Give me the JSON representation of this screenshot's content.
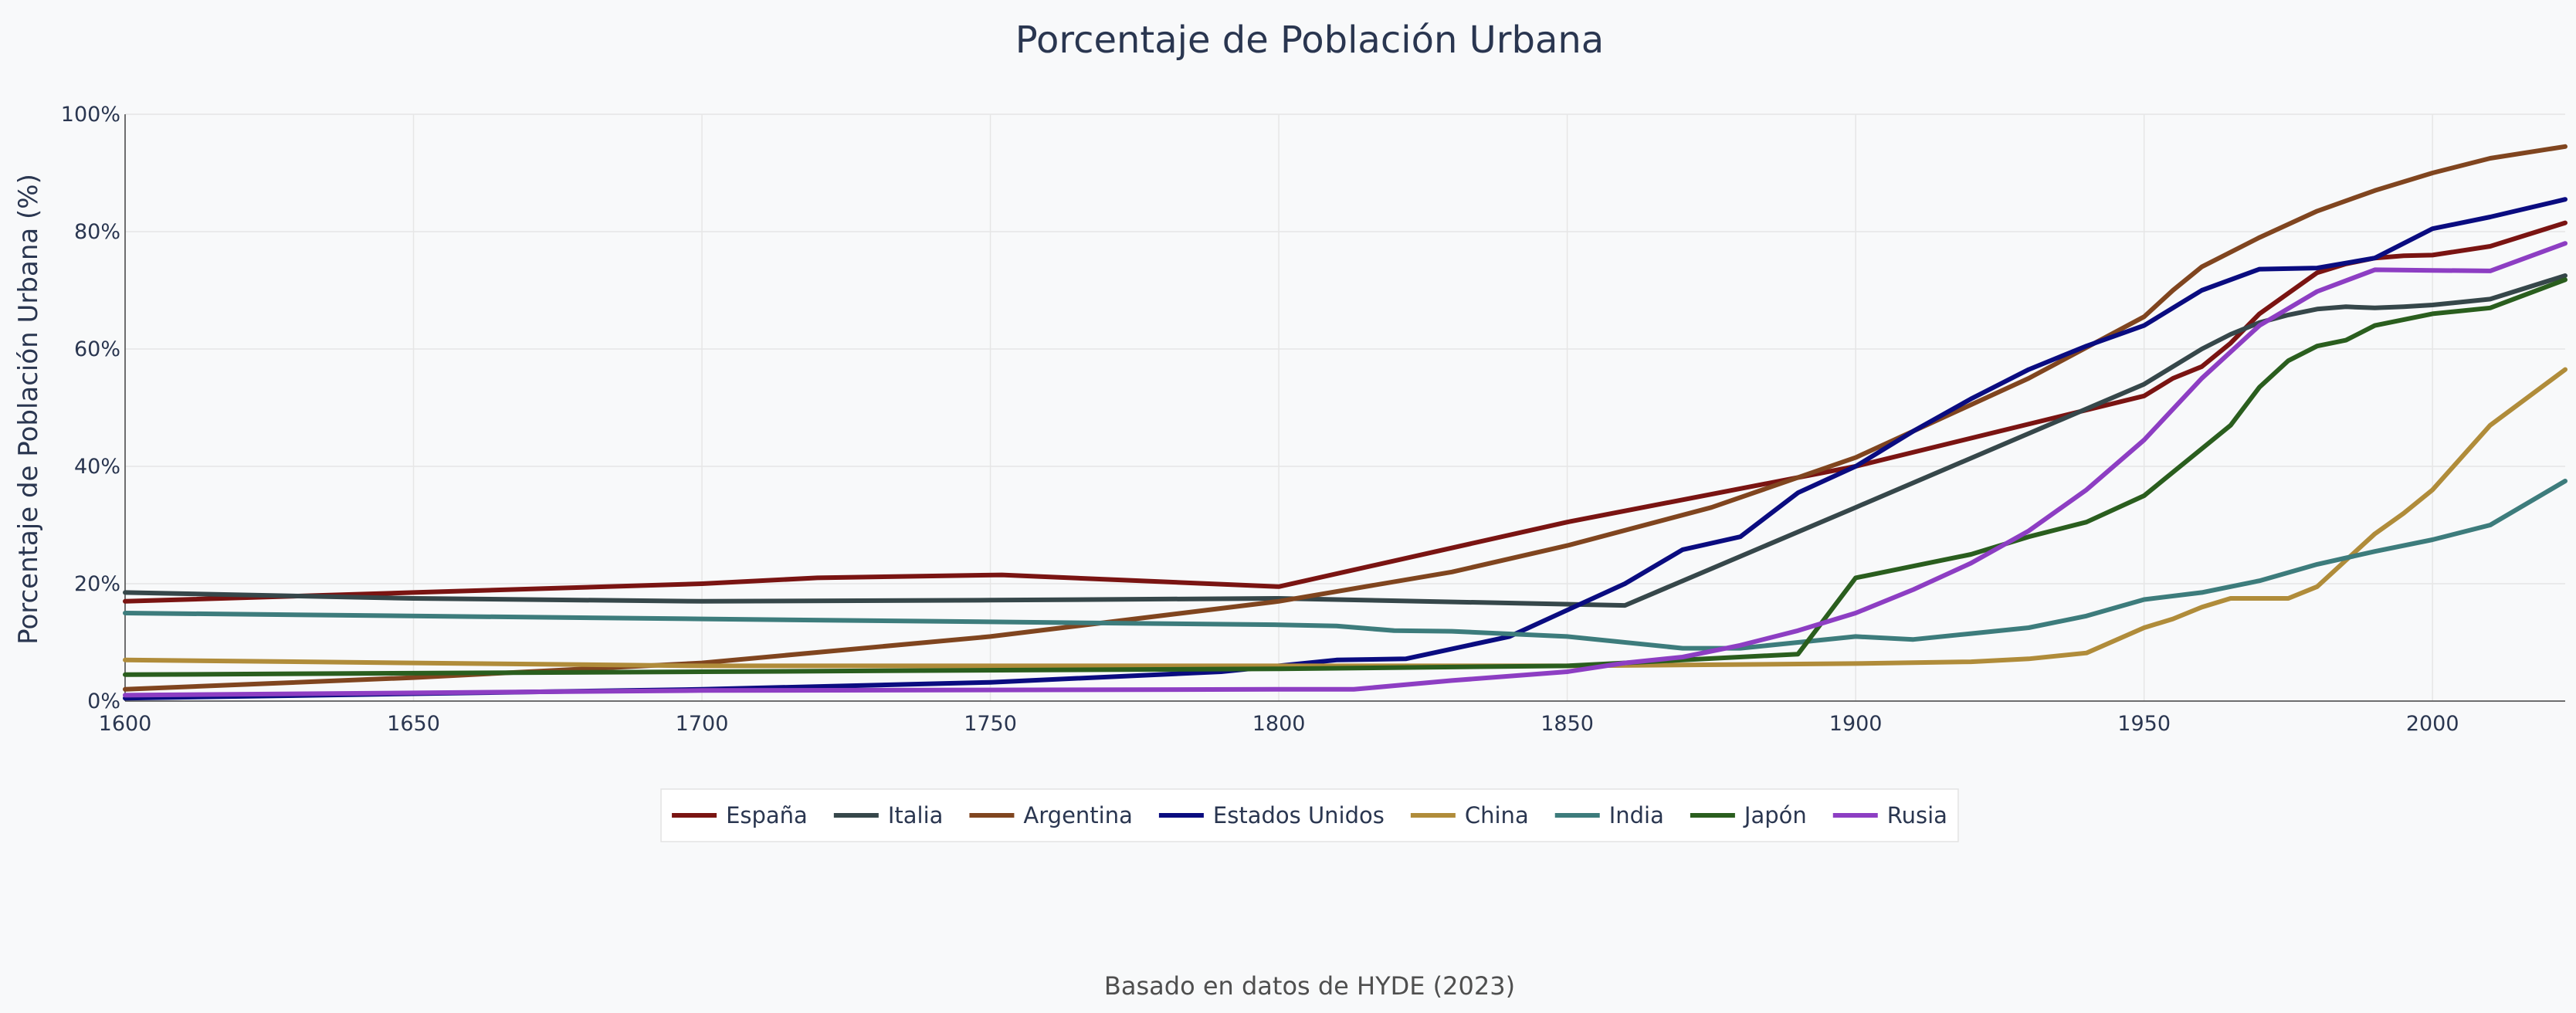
{
  "chart_data": {
    "type": "line",
    "title": "Porcentaje de Población Urbana",
    "xlabel": "",
    "ylabel": "Porcentaje de Población Urbana (%)",
    "xlim": [
      1600,
      2023
    ],
    "ylim": [
      0,
      100
    ],
    "x_ticks": [
      "1600",
      "1650",
      "1700",
      "1750",
      "1800",
      "1850",
      "1900",
      "1950",
      "2000"
    ],
    "y_ticks": [
      "0%",
      "20%",
      "40%",
      "60%",
      "80%",
      "100%"
    ],
    "grid": true,
    "legend_position": "bottom-center",
    "footnote": "Basado en datos de HYDE (2023)",
    "series": [
      {
        "name": "España",
        "color": "#7a1412",
        "points": [
          [
            1600,
            17
          ],
          [
            1650,
            18.5
          ],
          [
            1700,
            20
          ],
          [
            1720,
            21
          ],
          [
            1752,
            21.5
          ],
          [
            1800,
            19.5
          ],
          [
            1850,
            30.5
          ],
          [
            1900,
            40
          ],
          [
            1950,
            52
          ],
          [
            1955,
            55
          ],
          [
            1960,
            57
          ],
          [
            1965,
            61
          ],
          [
            1970,
            66
          ],
          [
            1975,
            69.5
          ],
          [
            1980,
            73
          ],
          [
            1985,
            74.5
          ],
          [
            1990,
            75.5
          ],
          [
            1995,
            75.9
          ],
          [
            2000,
            76
          ],
          [
            2010,
            77.5
          ],
          [
            2023,
            81.5
          ]
        ]
      },
      {
        "name": "Italia",
        "color": "#36474a",
        "points": [
          [
            1600,
            18.5
          ],
          [
            1650,
            17.5
          ],
          [
            1700,
            17
          ],
          [
            1750,
            17.2
          ],
          [
            1800,
            17.5
          ],
          [
            1860,
            16.3
          ],
          [
            1900,
            33
          ],
          [
            1950,
            54
          ],
          [
            1955,
            57
          ],
          [
            1960,
            60
          ],
          [
            1965,
            62.5
          ],
          [
            1970,
            64.5
          ],
          [
            1975,
            65.8
          ],
          [
            1980,
            66.8
          ],
          [
            1985,
            67.2
          ],
          [
            1990,
            67
          ],
          [
            1995,
            67.2
          ],
          [
            2000,
            67.5
          ],
          [
            2010,
            68.5
          ],
          [
            2023,
            72.5
          ]
        ]
      },
      {
        "name": "Argentina",
        "color": "#80451f",
        "points": [
          [
            1600,
            2
          ],
          [
            1650,
            4
          ],
          [
            1700,
            6.5
          ],
          [
            1750,
            11
          ],
          [
            1800,
            17
          ],
          [
            1830,
            22
          ],
          [
            1850,
            26.5
          ],
          [
            1875,
            33
          ],
          [
            1900,
            41.5
          ],
          [
            1930,
            55
          ],
          [
            1950,
            65.5
          ],
          [
            1955,
            70
          ],
          [
            1960,
            74
          ],
          [
            1970,
            79
          ],
          [
            1980,
            83.5
          ],
          [
            1990,
            87
          ],
          [
            2000,
            90
          ],
          [
            2010,
            92.5
          ],
          [
            2023,
            94.5
          ]
        ]
      },
      {
        "name": "Estados Unidos",
        "color": "#0a0c80",
        "points": [
          [
            1600,
            0.5
          ],
          [
            1700,
            2
          ],
          [
            1750,
            3.2
          ],
          [
            1790,
            5
          ],
          [
            1800,
            6
          ],
          [
            1810,
            7
          ],
          [
            1822,
            7.2
          ],
          [
            1840,
            11
          ],
          [
            1850,
            15.5
          ],
          [
            1860,
            20
          ],
          [
            1870,
            25.8
          ],
          [
            1880,
            28
          ],
          [
            1890,
            35.5
          ],
          [
            1900,
            40
          ],
          [
            1910,
            46
          ],
          [
            1920,
            51.5
          ],
          [
            1930,
            56.5
          ],
          [
            1940,
            60.5
          ],
          [
            1950,
            64
          ],
          [
            1960,
            70
          ],
          [
            1970,
            73.6
          ],
          [
            1980,
            73.8
          ],
          [
            1990,
            75.5
          ],
          [
            2000,
            80.5
          ],
          [
            2010,
            82.5
          ],
          [
            2023,
            85.5
          ]
        ]
      },
      {
        "name": "China",
        "color": "#b08c3a",
        "points": [
          [
            1600,
            7
          ],
          [
            1700,
            6
          ],
          [
            1800,
            6
          ],
          [
            1850,
            6
          ],
          [
            1900,
            6.4
          ],
          [
            1920,
            6.7
          ],
          [
            1930,
            7.2
          ],
          [
            1940,
            8.2
          ],
          [
            1950,
            12.5
          ],
          [
            1955,
            14
          ],
          [
            1960,
            16
          ],
          [
            1965,
            17.5
          ],
          [
            1970,
            17.5
          ],
          [
            1975,
            17.5
          ],
          [
            1980,
            19.5
          ],
          [
            1985,
            24
          ],
          [
            1990,
            28.5
          ],
          [
            1995,
            32
          ],
          [
            2000,
            36
          ],
          [
            2010,
            47
          ],
          [
            2023,
            56.5
          ]
        ]
      },
      {
        "name": "India",
        "color": "#3d7c7c",
        "points": [
          [
            1600,
            15
          ],
          [
            1700,
            14
          ],
          [
            1800,
            13
          ],
          [
            1810,
            12.8
          ],
          [
            1820,
            12
          ],
          [
            1830,
            11.9
          ],
          [
            1850,
            11
          ],
          [
            1870,
            9
          ],
          [
            1880,
            9
          ],
          [
            1890,
            10
          ],
          [
            1900,
            11
          ],
          [
            1910,
            10.5
          ],
          [
            1920,
            11.5
          ],
          [
            1930,
            12.5
          ],
          [
            1940,
            14.5
          ],
          [
            1950,
            17.3
          ],
          [
            1960,
            18.5
          ],
          [
            1970,
            20.5
          ],
          [
            1980,
            23.3
          ],
          [
            1990,
            25.5
          ],
          [
            2000,
            27.5
          ],
          [
            2010,
            30
          ],
          [
            2023,
            37.5
          ]
        ]
      },
      {
        "name": "Japón",
        "color": "#2a5e1e",
        "points": [
          [
            1600,
            4.5
          ],
          [
            1700,
            5
          ],
          [
            1800,
            5.5
          ],
          [
            1850,
            6
          ],
          [
            1870,
            7
          ],
          [
            1890,
            8
          ],
          [
            1900,
            21
          ],
          [
            1910,
            23
          ],
          [
            1920,
            25
          ],
          [
            1930,
            28
          ],
          [
            1940,
            30.5
          ],
          [
            1950,
            35
          ],
          [
            1960,
            43
          ],
          [
            1965,
            47
          ],
          [
            1970,
            53.5
          ],
          [
            1975,
            58
          ],
          [
            1980,
            60.5
          ],
          [
            1985,
            61.5
          ],
          [
            1990,
            64
          ],
          [
            2000,
            66
          ],
          [
            2010,
            67
          ],
          [
            2023,
            71.8
          ]
        ]
      },
      {
        "name": "Rusia",
        "color": "#8d3ec3",
        "points": [
          [
            1600,
            1
          ],
          [
            1700,
            1.8
          ],
          [
            1800,
            2
          ],
          [
            1813,
            2
          ],
          [
            1830,
            3.5
          ],
          [
            1850,
            5
          ],
          [
            1860,
            6.5
          ],
          [
            1870,
            7.5
          ],
          [
            1880,
            9.5
          ],
          [
            1890,
            12
          ],
          [
            1900,
            15
          ],
          [
            1910,
            19
          ],
          [
            1920,
            23.5
          ],
          [
            1930,
            29
          ],
          [
            1940,
            36
          ],
          [
            1950,
            44.5
          ],
          [
            1960,
            55
          ],
          [
            1970,
            64
          ],
          [
            1980,
            69.8
          ],
          [
            1990,
            73.5
          ],
          [
            2000,
            73.4
          ],
          [
            2010,
            73.3
          ],
          [
            2023,
            78
          ]
        ]
      }
    ]
  }
}
